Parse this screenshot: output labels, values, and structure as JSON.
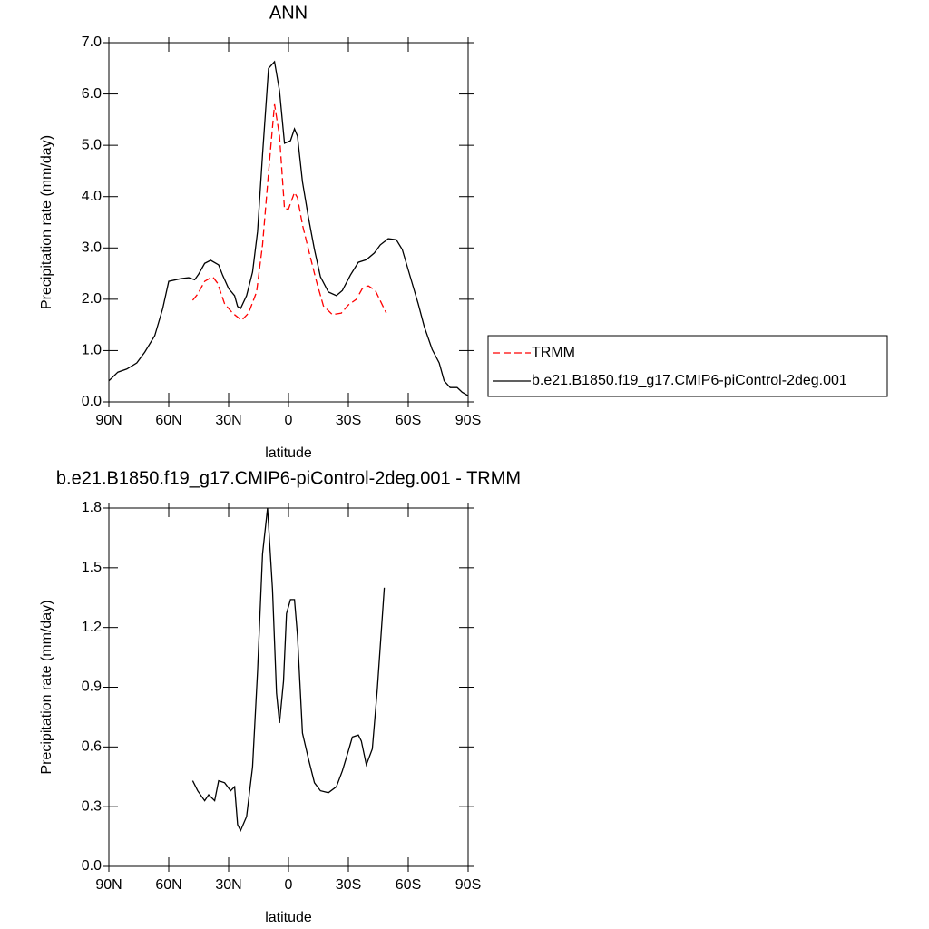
{
  "chart_data": [
    {
      "type": "line",
      "title": "ANN",
      "xlabel": "latitude",
      "ylabel": "Precipitation rate (mm/day)",
      "xlim": [
        90,
        -90
      ],
      "xticks": [
        {
          "value": 90,
          "label": "90N"
        },
        {
          "value": 60,
          "label": "60N"
        },
        {
          "value": 30,
          "label": "30N"
        },
        0,
        {
          "value": -30,
          "label": "30S"
        },
        {
          "value": -60,
          "label": "60S"
        },
        {
          "value": -90,
          "label": "90S"
        }
      ],
      "ylim": [
        0,
        7
      ],
      "yticks": [
        {
          "value": 0,
          "label": "0.0"
        },
        {
          "value": 1,
          "label": "1.0"
        },
        {
          "value": 2,
          "label": "2.0"
        },
        {
          "value": 3,
          "label": "3.0"
        },
        {
          "value": 4,
          "label": "4.0"
        },
        {
          "value": 5,
          "label": "5.0"
        },
        {
          "value": 6,
          "label": "6.0"
        },
        {
          "value": 7,
          "label": "7.0"
        }
      ],
      "legend": "right",
      "series": [
        {
          "name": "TRMM",
          "color": "#ff0000",
          "dashed": true,
          "x": [
            48,
            45.5,
            42,
            38,
            35.5,
            32,
            28,
            23.5,
            20,
            16,
            13,
            10,
            7,
            4.5,
            2,
            0,
            -3,
            -4.5,
            -7,
            -10,
            -14,
            -17.5,
            -22,
            -26.5,
            -30,
            -34,
            -37,
            -40,
            -43.5,
            -49
          ],
          "values": [
            1.98,
            2.1,
            2.35,
            2.44,
            2.31,
            1.91,
            1.73,
            1.59,
            1.73,
            2.14,
            3.06,
            4.47,
            5.8,
            5.18,
            3.76,
            3.76,
            4.08,
            3.98,
            3.45,
            2.97,
            2.35,
            1.87,
            1.7,
            1.73,
            1.89,
            2.0,
            2.21,
            2.26,
            2.17,
            1.73
          ]
        },
        {
          "name": "b.e21.B1850.f19_g17.CMIP6-piControl-2deg.001",
          "color": "#000000",
          "dashed": false,
          "x": [
            90,
            85.5,
            81,
            76,
            72,
            67,
            63,
            60,
            54,
            50,
            47,
            45,
            42,
            39,
            35,
            33,
            30,
            27,
            25.5,
            24,
            21,
            18,
            15.5,
            13,
            10,
            7,
            4.5,
            2,
            -1,
            -3,
            -4.5,
            -7,
            -10,
            -13,
            -16,
            -20,
            -24,
            -27,
            -31,
            -35,
            -39,
            -43,
            -46,
            -50,
            -54,
            -57,
            -61,
            -65,
            -68,
            -72,
            -75.5,
            -78,
            -81,
            -84.5,
            -87,
            -90
          ],
          "values": [
            0.41,
            0.58,
            0.64,
            0.76,
            0.97,
            1.29,
            1.82,
            2.35,
            2.4,
            2.42,
            2.38,
            2.49,
            2.7,
            2.76,
            2.67,
            2.47,
            2.21,
            2.07,
            1.86,
            1.82,
            2.07,
            2.53,
            3.32,
            4.82,
            6.5,
            6.63,
            6.06,
            5.04,
            5.09,
            5.32,
            5.18,
            4.29,
            3.59,
            2.97,
            2.44,
            2.14,
            2.07,
            2.17,
            2.47,
            2.72,
            2.77,
            2.9,
            3.06,
            3.18,
            3.16,
            2.97,
            2.44,
            1.91,
            1.47,
            1.02,
            0.76,
            0.41,
            0.28,
            0.28,
            0.19,
            0.12
          ]
        }
      ]
    },
    {
      "type": "line",
      "title": "b.e21.B1850.f19_g17.CMIP6-piControl-2deg.001 - TRMM",
      "xlabel": "latitude",
      "ylabel": "Precipitation rate (mm/day)",
      "xlim": [
        90,
        -90
      ],
      "xticks": [
        {
          "value": 90,
          "label": "90N"
        },
        {
          "value": 60,
          "label": "60N"
        },
        {
          "value": 30,
          "label": "30N"
        },
        0,
        {
          "value": -30,
          "label": "30S"
        },
        {
          "value": -60,
          "label": "60S"
        },
        {
          "value": -90,
          "label": "90S"
        }
      ],
      "ylim": [
        0,
        1.8
      ],
      "yticks": [
        {
          "value": 0,
          "label": "0.0"
        },
        0.3,
        0.6,
        0.9,
        1.2,
        1.5,
        1.8
      ],
      "series": [
        {
          "color": "#000000",
          "dashed": false,
          "x": [
            48,
            45.5,
            42,
            40,
            37,
            35,
            32,
            29,
            27,
            25.5,
            24,
            21,
            18,
            15.5,
            13,
            10.5,
            8,
            6,
            4.5,
            2.5,
            1,
            -1,
            -3,
            -4.5,
            -7,
            -10,
            -13,
            -16,
            -20,
            -24,
            -27,
            -30,
            -32,
            -35,
            -36.5,
            -39,
            -42,
            -44.5,
            -48
          ],
          "values": [
            0.43,
            0.38,
            0.33,
            0.36,
            0.33,
            0.43,
            0.42,
            0.38,
            0.4,
            0.21,
            0.18,
            0.25,
            0.5,
            0.98,
            1.57,
            1.8,
            1.39,
            0.87,
            0.72,
            0.93,
            1.27,
            1.34,
            1.34,
            1.16,
            0.67,
            0.54,
            0.42,
            0.38,
            0.37,
            0.4,
            0.48,
            0.58,
            0.65,
            0.66,
            0.63,
            0.51,
            0.59,
            0.89,
            1.4
          ]
        }
      ]
    }
  ]
}
